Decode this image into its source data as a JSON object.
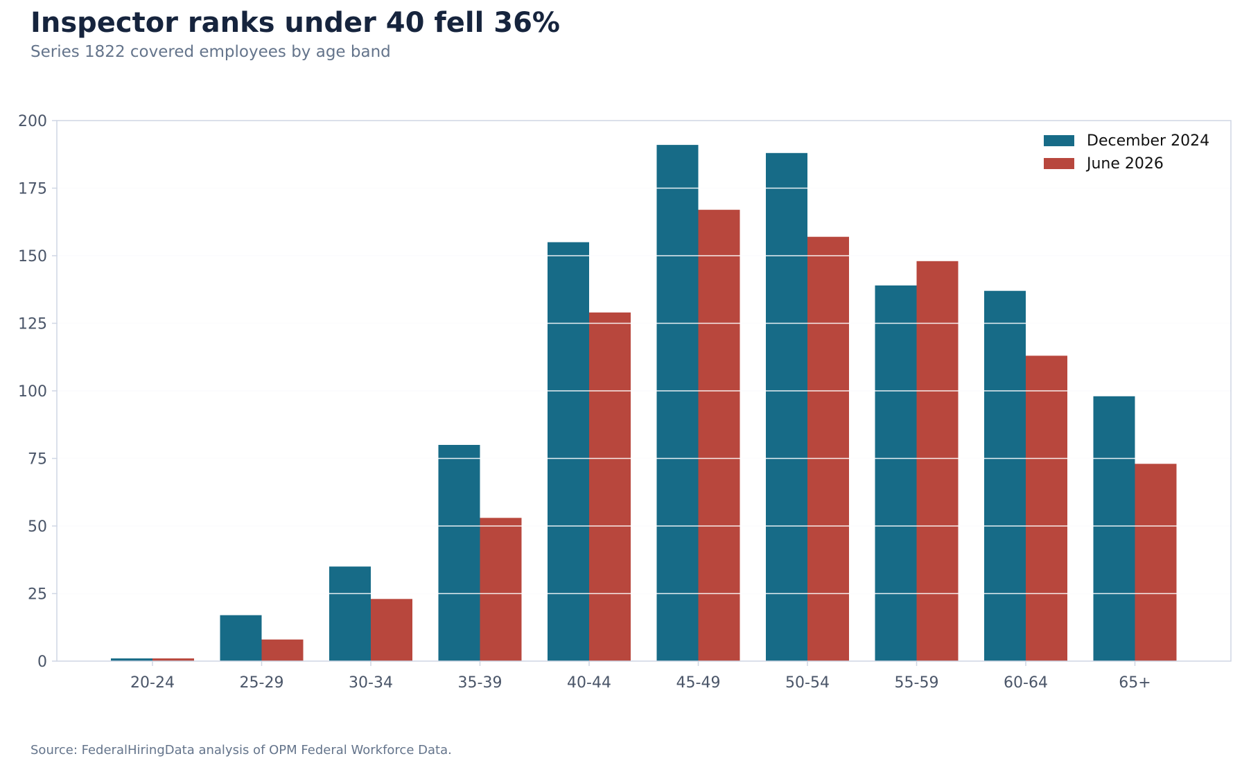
{
  "chart_data": {
    "type": "bar",
    "title": "Inspector ranks under 40 fell 36%",
    "subtitle": "Series 1822 covered employees by age band",
    "source": "Source: FederalHiringData analysis of OPM Federal Workforce Data.",
    "categories": [
      "20-24",
      "25-29",
      "30-34",
      "35-39",
      "40-44",
      "45-49",
      "50-54",
      "55-59",
      "60-64",
      "65+"
    ],
    "series": [
      {
        "name": "December 2024",
        "color": "#176b87",
        "values": [
          1,
          17,
          35,
          80,
          155,
          191,
          188,
          139,
          137,
          98
        ]
      },
      {
        "name": "June 2026",
        "color": "#b8473d",
        "values": [
          1,
          8,
          23,
          53,
          129,
          167,
          157,
          148,
          113,
          73
        ]
      }
    ],
    "xlabel": "",
    "ylabel": "",
    "ylim": [
      0,
      200
    ],
    "yticks": [
      0,
      25,
      50,
      75,
      100,
      125,
      150,
      175,
      200
    ],
    "grid": true,
    "legend_position": "top-right"
  }
}
